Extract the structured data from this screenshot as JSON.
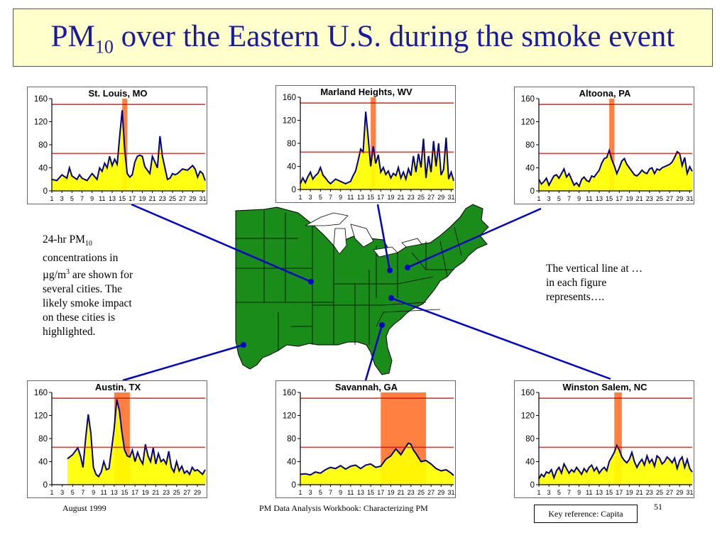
{
  "slide": {
    "title_main": "PM",
    "title_sub": "10",
    "title_rest": " over the Eastern U.S. during the smoke event",
    "left_text": {
      "line1_a": "24-hr PM",
      "line1_sub": "10",
      "line2": "concentrations in",
      "line3_a": "µg/m",
      "line3_sup": "3",
      "line3_b": " are shown for",
      "line4": "several cities.  The",
      "line5": "likely smoke impact",
      "line6": "on these cities is",
      "line7": "highlighted."
    },
    "right_text": {
      "line1": "The vertical line at …",
      "line2": "in each figure",
      "line3": "represents…."
    },
    "footer_left": "August 1999",
    "footer_center": "PM Data Analysis Workbook: Characterizing PM",
    "page_number": "51",
    "key_reference": "Key reference: Capita"
  },
  "colors": {
    "title_text": "#1a1aa0",
    "title_bg": "#ffffcc",
    "area_fill": "#ffff00",
    "series_line": "#000080",
    "highlight": "#ff8040",
    "threshold_line": "#cc0000",
    "map_land": "#1a8c1a",
    "connector": "#0000cc"
  },
  "chart_data": [
    {
      "type": "area",
      "title": "St. Louis, MO",
      "ylim": [
        0,
        160
      ],
      "y_ticks": [
        "0",
        "40",
        "80",
        "120",
        "160"
      ],
      "x_range": [
        1,
        31.5
      ],
      "x_ticks": [
        "1",
        "3",
        "5",
        "7",
        "9",
        "11",
        "13",
        "15",
        "17",
        "19",
        "21",
        "23",
        "25",
        "27",
        "29",
        "31"
      ],
      "threshold_lines": [
        65,
        150
      ],
      "highlight_range": [
        15,
        16
      ],
      "x": [
        1,
        2,
        3,
        4,
        4.5,
        5,
        6,
        6.5,
        7,
        8,
        9,
        10,
        10.5,
        11,
        11.5,
        12,
        12.5,
        13,
        13.5,
        14,
        14.5,
        15,
        15.5,
        16,
        16.5,
        17,
        17.5,
        18,
        18.5,
        19,
        19.5,
        20,
        20.5,
        21,
        21.5,
        22,
        22.5,
        23,
        23.5,
        24,
        24.5,
        25,
        25.5,
        26,
        27,
        28,
        29,
        29.5,
        30,
        30.5,
        31,
        31.5
      ],
      "y": [
        20,
        18,
        28,
        22,
        40,
        26,
        20,
        28,
        22,
        18,
        30,
        20,
        40,
        34,
        48,
        40,
        60,
        44,
        55,
        46,
        95,
        140,
        70,
        30,
        24,
        28,
        50,
        60,
        62,
        60,
        42,
        36,
        30,
        60,
        50,
        40,
        95,
        60,
        40,
        20,
        22,
        30,
        28,
        30,
        38,
        36,
        44,
        38,
        24,
        34,
        30,
        18
      ]
    },
    {
      "type": "area",
      "title": "Marland Heights, WV",
      "ylim": [
        0,
        160
      ],
      "y_ticks": [
        "0",
        "40",
        "80",
        "120",
        "160"
      ],
      "x_range": [
        1,
        31.5
      ],
      "x_ticks": [
        "1",
        "3",
        "5",
        "7",
        "9",
        "11",
        "13",
        "15",
        "17",
        "19",
        "21",
        "23",
        "25",
        "27",
        "29",
        "31"
      ],
      "threshold_lines": [
        65,
        150
      ],
      "highlight_range": [
        15,
        16
      ],
      "x": [
        1,
        1.5,
        2,
        2.5,
        3,
        3.5,
        4,
        4.5,
        5,
        5.5,
        6,
        6.5,
        7,
        8,
        9,
        10,
        11,
        11.5,
        12,
        12.5,
        13,
        13.5,
        14,
        14.5,
        15,
        15.5,
        16,
        16.5,
        17,
        17.5,
        18,
        18.5,
        19,
        19.5,
        20,
        20.5,
        21,
        21.5,
        22,
        22.5,
        23,
        23.5,
        24,
        24.5,
        25,
        25.5,
        26,
        26.5,
        27,
        27.5,
        28,
        28.5,
        29,
        29.5,
        30,
        30.5,
        31,
        31.5
      ],
      "y": [
        10,
        20,
        12,
        22,
        30,
        18,
        24,
        28,
        38,
        25,
        20,
        14,
        10,
        18,
        14,
        10,
        14,
        24,
        32,
        50,
        70,
        65,
        135,
        90,
        40,
        75,
        45,
        60,
        30,
        38,
        26,
        32,
        20,
        28,
        24,
        38,
        20,
        30,
        18,
        36,
        24,
        58,
        30,
        62,
        38,
        88,
        20,
        58,
        30,
        84,
        40,
        80,
        25,
        35,
        90,
        18,
        30,
        15
      ]
    },
    {
      "type": "area",
      "title": "Altoona, PA",
      "ylim": [
        0,
        160
      ],
      "y_ticks": [
        "0",
        "40",
        "80",
        "120",
        "160"
      ],
      "x_range": [
        1,
        31.5
      ],
      "x_ticks": [
        "1",
        "3",
        "5",
        "7",
        "9",
        "11",
        "13",
        "15",
        "17",
        "19",
        "21",
        "23",
        "25",
        "27",
        "29",
        "31"
      ],
      "threshold_lines": [
        65,
        150
      ],
      "highlight_range": [
        15,
        16
      ],
      "x": [
        1,
        1.5,
        2,
        2.5,
        3,
        3.5,
        4,
        4.5,
        5,
        5.5,
        6,
        6.5,
        7,
        7.5,
        8,
        8.5,
        9,
        9.5,
        10,
        10.5,
        11,
        11.5,
        12,
        12.5,
        13,
        13.5,
        14,
        14.5,
        15,
        15.5,
        16,
        16.5,
        17,
        17.5,
        18,
        18.5,
        19,
        19.5,
        20,
        20.5,
        21,
        21.5,
        22,
        22.5,
        23,
        23.5,
        24,
        24.5,
        25,
        25.5,
        26,
        26.5,
        27,
        27.5,
        28,
        28.5,
        29,
        29.5,
        30,
        30.5,
        31,
        31.5
      ],
      "y": [
        20,
        12,
        16,
        22,
        10,
        18,
        26,
        28,
        22,
        30,
        38,
        24,
        30,
        20,
        10,
        14,
        8,
        20,
        24,
        18,
        16,
        26,
        24,
        30,
        36,
        48,
        56,
        58,
        70,
        54,
        44,
        30,
        40,
        52,
        56,
        46,
        40,
        34,
        28,
        26,
        30,
        36,
        32,
        30,
        38,
        40,
        30,
        38,
        36,
        40,
        42,
        44,
        46,
        50,
        58,
        68,
        65,
        44,
        58,
        30,
        42,
        34
      ]
    },
    {
      "type": "area",
      "title": "Austin, TX",
      "ylim": [
        0,
        160
      ],
      "y_ticks": [
        "0",
        "40",
        "80",
        "120",
        "160"
      ],
      "x_range": [
        1,
        30.5
      ],
      "x_ticks": [
        "1",
        "3",
        "5",
        "7",
        "9",
        "11",
        "13",
        "15",
        "17",
        "19",
        "21",
        "23",
        "25",
        "27",
        "29"
      ],
      "threshold_lines": [
        65,
        150
      ],
      "highlight_range": [
        13,
        16
      ],
      "x": [
        4,
        5,
        5.5,
        6,
        6.5,
        7,
        7.5,
        8,
        8.5,
        9,
        9.5,
        10,
        10.5,
        11,
        11.5,
        12,
        12.5,
        13,
        13.5,
        14,
        14.5,
        15,
        15.5,
        16,
        16.5,
        17,
        17.5,
        18,
        18.5,
        19,
        19.5,
        20,
        20.5,
        21,
        21.5,
        22,
        22.5,
        23,
        23.5,
        24,
        24.5,
        25,
        25.5,
        26,
        26.5,
        27,
        27.5,
        28,
        28.5,
        29,
        29.5,
        30,
        30.5
      ],
      "y": [
        45,
        52,
        58,
        64,
        50,
        30,
        80,
        122,
        90,
        30,
        18,
        14,
        22,
        40,
        26,
        28,
        62,
        98,
        148,
        128,
        90,
        60,
        50,
        48,
        60,
        40,
        56,
        44,
        36,
        70,
        50,
        40,
        64,
        36,
        54,
        40,
        44,
        36,
        58,
        30,
        22,
        40,
        24,
        32,
        20,
        24,
        18,
        30,
        24,
        26,
        22,
        18,
        26
      ]
    },
    {
      "type": "area",
      "title": "Savannah, GA",
      "ylim": [
        0,
        160
      ],
      "y_ticks": [
        "0",
        "40",
        "80",
        "120",
        "160"
      ],
      "x_range": [
        1,
        31.5
      ],
      "x_ticks": [
        "1",
        "3",
        "5",
        "7",
        "9",
        "11",
        "13",
        "15",
        "17",
        "19",
        "21",
        "23",
        "25",
        "27",
        "29",
        "31"
      ],
      "threshold_lines": [
        65,
        150
      ],
      "highlight_range": [
        17,
        26
      ],
      "x": [
        1,
        2,
        3,
        4,
        5,
        6,
        7,
        8,
        9,
        10,
        11,
        12,
        13,
        14,
        15,
        16,
        17,
        18,
        19,
        20,
        21,
        22,
        22.5,
        23,
        23.5,
        24,
        25,
        26,
        27,
        28,
        29,
        30,
        31,
        31.5
      ],
      "y": [
        18,
        19,
        17,
        22,
        20,
        26,
        30,
        28,
        33,
        27,
        32,
        34,
        28,
        34,
        36,
        30,
        32,
        44,
        50,
        62,
        52,
        66,
        72,
        70,
        60,
        54,
        40,
        42,
        36,
        28,
        24,
        26,
        20,
        16
      ]
    },
    {
      "type": "area",
      "title": "Winston Salem, NC",
      "ylim": [
        0,
        160
      ],
      "y_ticks": [
        "0",
        "40",
        "80",
        "120",
        "160"
      ],
      "x_range": [
        1,
        31.5
      ],
      "x_ticks": [
        "1",
        "3",
        "5",
        "7",
        "9",
        "11",
        "13",
        "15",
        "17",
        "19",
        "21",
        "23",
        "25",
        "27",
        "29",
        "31"
      ],
      "threshold_lines": [
        65,
        150
      ],
      "highlight_range": [
        16,
        17.5
      ],
      "x": [
        1,
        1.5,
        2,
        2.5,
        3,
        3.5,
        4,
        4.5,
        5,
        5.5,
        6,
        6.5,
        7,
        7.5,
        8,
        8.5,
        9,
        9.5,
        10,
        10.5,
        11,
        11.5,
        12,
        12.5,
        13,
        13.5,
        14,
        14.5,
        15,
        15.5,
        16,
        16.5,
        17,
        17.5,
        18,
        18.5,
        19,
        19.5,
        20,
        20.5,
        21,
        21.5,
        22,
        22.5,
        23,
        23.5,
        24,
        24.5,
        25,
        25.5,
        26,
        26.5,
        27,
        27.5,
        28,
        28.5,
        29,
        29.5,
        30,
        30.5,
        31,
        31.5
      ],
      "y": [
        10,
        18,
        14,
        22,
        20,
        26,
        12,
        24,
        30,
        20,
        36,
        28,
        20,
        26,
        22,
        30,
        24,
        18,
        28,
        22,
        30,
        34,
        24,
        30,
        20,
        26,
        30,
        24,
        40,
        48,
        56,
        68,
        60,
        48,
        42,
        38,
        44,
        56,
        40,
        30,
        38,
        44,
        34,
        50,
        38,
        44,
        32,
        50,
        46,
        36,
        40,
        48,
        44,
        38,
        46,
        28,
        42,
        48,
        30,
        44,
        28,
        22
      ]
    }
  ]
}
